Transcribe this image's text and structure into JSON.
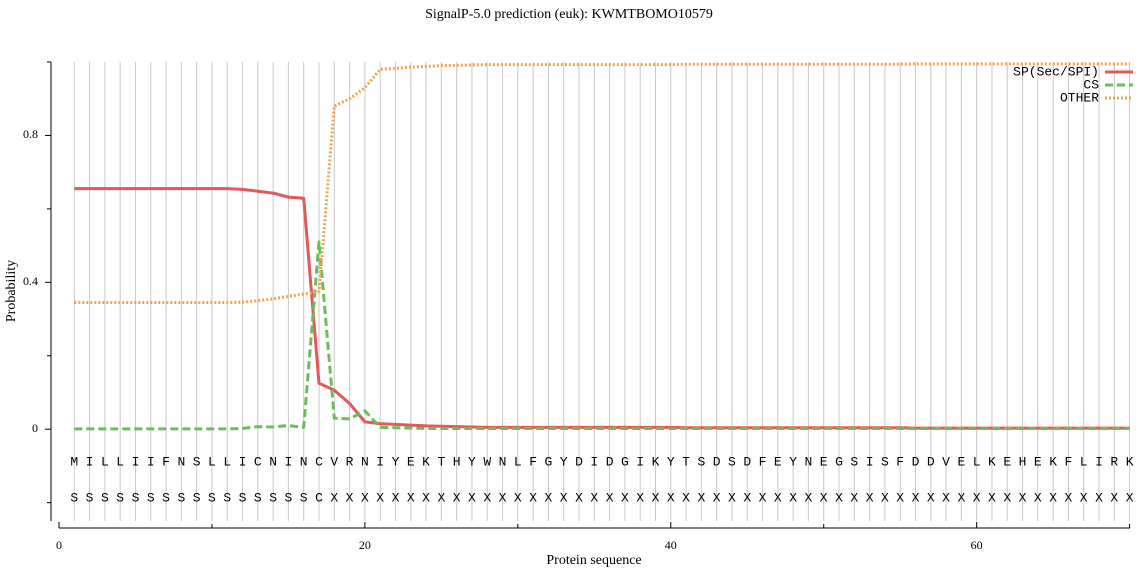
{
  "chart_data": {
    "type": "line",
    "title": "SignalP-5.0 prediction (euk):  KWMTBOMO10579",
    "xlabel": "Protein sequence",
    "ylabel": "Probability",
    "xlim": [
      0,
      70
    ],
    "xticks": [
      0,
      20,
      40,
      60
    ],
    "xminorticks": [
      10,
      30,
      50,
      70
    ],
    "ylim": [
      -0.25,
      1.0
    ],
    "yticks": [
      0,
      0.4,
      0.8
    ],
    "yminorticks": [
      -0.2,
      0.2,
      0.6,
      1.0
    ],
    "grid": true,
    "legend": "upper right",
    "x": [
      1,
      2,
      3,
      4,
      5,
      6,
      7,
      8,
      9,
      10,
      11,
      12,
      13,
      14,
      15,
      16,
      17,
      18,
      19,
      20,
      21,
      22,
      23,
      24,
      25,
      26,
      27,
      28,
      29,
      30,
      31,
      32,
      33,
      34,
      35,
      36,
      37,
      38,
      39,
      40,
      41,
      42,
      43,
      44,
      45,
      46,
      47,
      48,
      49,
      50,
      51,
      52,
      53,
      54,
      55,
      56,
      57,
      58,
      59,
      60,
      61,
      62,
      63,
      64,
      65,
      66,
      67,
      68,
      69,
      70
    ],
    "sequence": [
      "M",
      "I",
      "L",
      "L",
      "I",
      "I",
      "F",
      "N",
      "S",
      "L",
      "L",
      "I",
      "C",
      "N",
      "I",
      "N",
      "C",
      "V",
      "R",
      "N",
      "I",
      "Y",
      "E",
      "K",
      "T",
      "H",
      "Y",
      "W",
      "N",
      "L",
      "F",
      "G",
      "Y",
      "D",
      "I",
      "D",
      "G",
      "I",
      "K",
      "Y",
      "T",
      "S",
      "D",
      "S",
      "D",
      "F",
      "E",
      "Y",
      "N",
      "E",
      "G",
      "S",
      "I",
      "S",
      "F",
      "D",
      "D",
      "V",
      "E",
      "L",
      "K",
      "E",
      "H",
      "E",
      "K",
      "F",
      "L",
      "I",
      "R",
      "K"
    ],
    "labels": [
      "S",
      "S",
      "S",
      "S",
      "S",
      "S",
      "S",
      "S",
      "S",
      "S",
      "S",
      "S",
      "S",
      "S",
      "S",
      "S",
      "C",
      "X",
      "X",
      "X",
      "X",
      "X",
      "X",
      "X",
      "X",
      "X",
      "X",
      "X",
      "X",
      "X",
      "X",
      "X",
      "X",
      "X",
      "X",
      "X",
      "X",
      "X",
      "X",
      "X",
      "X",
      "X",
      "X",
      "X",
      "X",
      "X",
      "X",
      "X",
      "X",
      "X",
      "X",
      "X",
      "X",
      "X",
      "X",
      "X",
      "X",
      "X",
      "X",
      "X",
      "X",
      "X",
      "X",
      "X",
      "X",
      "X",
      "X",
      "X",
      "X",
      "X"
    ],
    "series": [
      {
        "name": "SP(Sec/SPI)",
        "color": "#e3585a",
        "dash": "solid",
        "values": [
          0.655,
          0.655,
          0.655,
          0.655,
          0.655,
          0.655,
          0.655,
          0.655,
          0.655,
          0.655,
          0.655,
          0.653,
          0.648,
          0.643,
          0.632,
          0.629,
          0.125,
          0.106,
          0.07,
          0.02,
          0.015,
          0.013,
          0.011,
          0.009,
          0.008,
          0.007,
          0.006,
          0.005,
          0.005,
          0.005,
          0.005,
          0.005,
          0.005,
          0.005,
          0.005,
          0.005,
          0.005,
          0.005,
          0.005,
          0.005,
          0.004,
          0.004,
          0.004,
          0.004,
          0.004,
          0.004,
          0.004,
          0.004,
          0.004,
          0.004,
          0.004,
          0.004,
          0.004,
          0.004,
          0.004,
          0.003,
          0.003,
          0.003,
          0.003,
          0.003,
          0.003,
          0.003,
          0.003,
          0.003,
          0.003,
          0.003,
          0.003,
          0.003,
          0.003,
          0.003
        ]
      },
      {
        "name": "CS",
        "color": "#6bbd5b",
        "dash": "dashed",
        "values": [
          0.001,
          0.001,
          0.001,
          0.001,
          0.001,
          0.001,
          0.001,
          0.001,
          0.001,
          0.001,
          0.001,
          0.002,
          0.007,
          0.006,
          0.01,
          0.005,
          0.51,
          0.03,
          0.028,
          0.05,
          0.005,
          0.004,
          0.003,
          0.002,
          0.002,
          0.002,
          0.002,
          0.002,
          0.002,
          0.002,
          0.002,
          0.002,
          0.002,
          0.002,
          0.002,
          0.002,
          0.002,
          0.002,
          0.002,
          0.002,
          0.002,
          0.002,
          0.002,
          0.002,
          0.002,
          0.002,
          0.002,
          0.002,
          0.002,
          0.002,
          0.002,
          0.002,
          0.002,
          0.002,
          0.002,
          0.002,
          0.002,
          0.002,
          0.002,
          0.002,
          0.002,
          0.002,
          0.002,
          0.002,
          0.002,
          0.002,
          0.002,
          0.002,
          0.002,
          0.002
        ]
      },
      {
        "name": "OTHER",
        "color": "#f5a24d",
        "dash": "dotted",
        "values": [
          0.345,
          0.345,
          0.345,
          0.345,
          0.345,
          0.345,
          0.345,
          0.345,
          0.345,
          0.345,
          0.345,
          0.346,
          0.35,
          0.355,
          0.362,
          0.368,
          0.375,
          0.88,
          0.9,
          0.93,
          0.98,
          0.983,
          0.986,
          0.988,
          0.99,
          0.991,
          0.992,
          0.993,
          0.993,
          0.993,
          0.993,
          0.993,
          0.993,
          0.993,
          0.993,
          0.993,
          0.993,
          0.993,
          0.993,
          0.993,
          0.994,
          0.994,
          0.994,
          0.994,
          0.994,
          0.994,
          0.994,
          0.994,
          0.994,
          0.994,
          0.994,
          0.994,
          0.994,
          0.994,
          0.994,
          0.995,
          0.995,
          0.995,
          0.995,
          0.995,
          0.995,
          0.995,
          0.995,
          0.995,
          0.995,
          0.995,
          0.995,
          0.995,
          0.995,
          0.995
        ]
      }
    ]
  }
}
